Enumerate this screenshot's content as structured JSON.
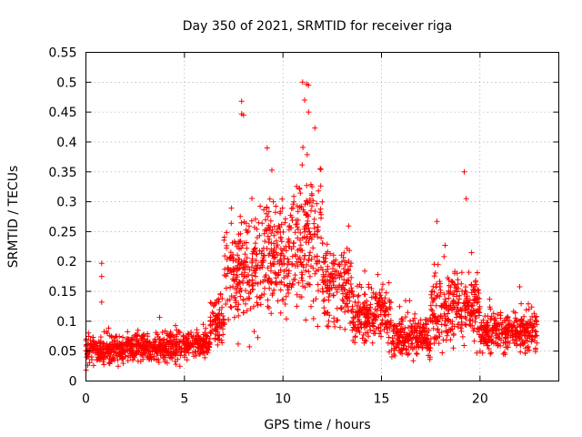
{
  "chart_data": {
    "type": "scatter",
    "title": "Day 350 of 2021, SRMTID for receiver riga",
    "xlabel": "GPS time / hours",
    "ylabel": "SRMTID / TECUs",
    "xlim": [
      0,
      24
    ],
    "ylim": [
      0,
      0.55
    ],
    "xticks": [
      "0",
      "5",
      "10",
      "15",
      "20"
    ],
    "xtick_values": [
      0,
      5,
      10,
      15,
      20
    ],
    "yticks": [
      "0",
      "0.05",
      "0.1",
      "0.15",
      "0.2",
      "0.25",
      "0.3",
      "0.35",
      "0.4",
      "0.45",
      "0.5",
      "0.55"
    ],
    "ytick_values": [
      0,
      0.05,
      0.1,
      0.15,
      0.2,
      0.25,
      0.3,
      0.35,
      0.4,
      0.45,
      0.5,
      0.55
    ],
    "grid": true,
    "marker": "+",
    "color": "#ff0000",
    "x_range_of_data": [
      0,
      22.9
    ],
    "series": [
      {
        "name": "SRMTID",
        "description_note": "dense scatter of about 2500 samples; envelope summarised by time band",
        "bands": [
          {
            "x": [
              0.0,
              2.0
            ],
            "y_center": 0.05,
            "y_spread": 0.03
          },
          {
            "x": [
              2.0,
              5.0
            ],
            "y_center": 0.055,
            "y_spread": 0.03
          },
          {
            "x": [
              5.0,
              6.3
            ],
            "y_center": 0.06,
            "y_spread": 0.03
          },
          {
            "x": [
              6.3,
              7.0
            ],
            "y_center": 0.1,
            "y_spread": 0.05
          },
          {
            "x": [
              7.0,
              8.5
            ],
            "y_center": 0.18,
            "y_spread": 0.12
          },
          {
            "x": [
              8.5,
              10.5
            ],
            "y_center": 0.2,
            "y_spread": 0.12
          },
          {
            "x": [
              10.5,
              12.0
            ],
            "y_center": 0.22,
            "y_spread": 0.15
          },
          {
            "x": [
              12.0,
              13.5
            ],
            "y_center": 0.16,
            "y_spread": 0.09
          },
          {
            "x": [
              13.5,
              15.5
            ],
            "y_center": 0.11,
            "y_spread": 0.06
          },
          {
            "x": [
              15.5,
              17.5
            ],
            "y_center": 0.07,
            "y_spread": 0.04
          },
          {
            "x": [
              17.5,
              20.0
            ],
            "y_center": 0.12,
            "y_spread": 0.08
          },
          {
            "x": [
              20.0,
              22.9
            ],
            "y_center": 0.08,
            "y_spread": 0.04
          }
        ],
        "notable_points": [
          {
            "x": 0.8,
            "y": 0.197
          },
          {
            "x": 0.8,
            "y": 0.175
          },
          {
            "x": 0.8,
            "y": 0.132
          },
          {
            "x": 7.9,
            "y": 0.468
          },
          {
            "x": 7.9,
            "y": 0.447
          },
          {
            "x": 8.0,
            "y": 0.445
          },
          {
            "x": 9.2,
            "y": 0.39
          },
          {
            "x": 11.0,
            "y": 0.5
          },
          {
            "x": 11.2,
            "y": 0.497
          },
          {
            "x": 11.3,
            "y": 0.495
          },
          {
            "x": 11.1,
            "y": 0.47
          },
          {
            "x": 11.3,
            "y": 0.45
          },
          {
            "x": 19.2,
            "y": 0.35
          },
          {
            "x": 19.3,
            "y": 0.305
          }
        ]
      }
    ]
  }
}
